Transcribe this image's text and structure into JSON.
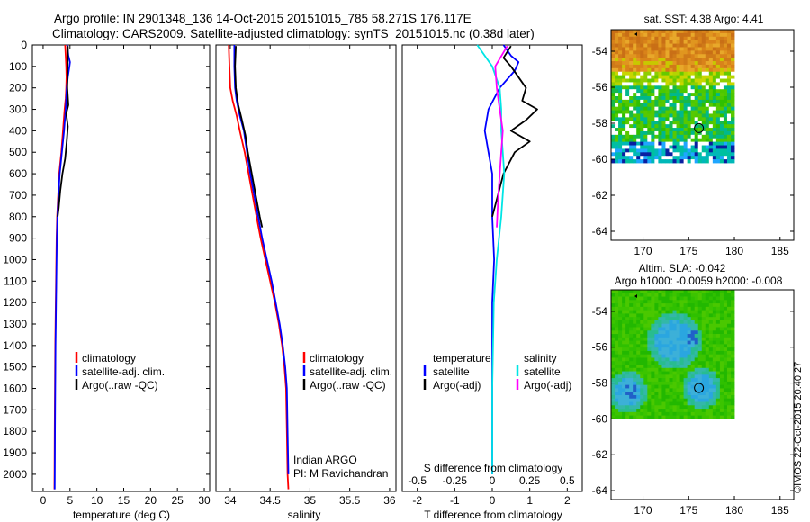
{
  "header": {
    "line1": "Argo profile: IN 2901348_136 14-Oct-2015 20151015_785 58.271S 176.117E",
    "line2": "Climatology: CARS2009. Satellite-adjusted climatology: synTS_20151015.nc (0.38d later)"
  },
  "colors": {
    "climatology": "#ff0000",
    "satellite": "#0000ff",
    "argo": "#000000",
    "sal_satellite": "#00e5e5",
    "sal_argo": "#ff00ff"
  },
  "credit": "©IMOS 22-Oct-2015 20:40:27",
  "chart_data": [
    {
      "type": "line",
      "id": "temperature",
      "xlabel": "temperature (deg C)",
      "xticks": [
        "0",
        "5",
        "10",
        "15",
        "20",
        "25",
        "30"
      ],
      "xlim": [
        -2,
        31
      ],
      "ylim": [
        2080,
        0
      ],
      "yticks": [
        "0",
        "100",
        "200",
        "300",
        "400",
        "500",
        "600",
        "700",
        "800",
        "900",
        "1000",
        "1100",
        "1200",
        "1300",
        "1400",
        "1500",
        "1600",
        "1700",
        "1800",
        "1900",
        "2000"
      ],
      "legend": [
        "climatology",
        "satellite-adj. clim.",
        "Argo(..raw -QC)"
      ],
      "series": [
        {
          "name": "climatology",
          "color": "#ff0000",
          "x": [
            4.1,
            4.2,
            4.3,
            4.35,
            4.3,
            4.2,
            4.0,
            3.7,
            3.4,
            3.0,
            2.8,
            2.6,
            2.5,
            2.45,
            2.4,
            2.35,
            2.3,
            2.25,
            2.2,
            2.15,
            2.12,
            2.1
          ],
          "y": [
            0,
            50,
            100,
            150,
            200,
            250,
            300,
            400,
            500,
            600,
            700,
            800,
            900,
            1000,
            1100,
            1200,
            1300,
            1400,
            1600,
            1800,
            2000,
            2070
          ]
        },
        {
          "name": "satellite-adj. clim.",
          "color": "#0000ff",
          "x": [
            4.5,
            4.7,
            5.0,
            4.9,
            4.6,
            4.4,
            4.2,
            3.9,
            3.5,
            3.1,
            2.85,
            2.65,
            2.55,
            2.5,
            2.45,
            2.4,
            2.35,
            2.3,
            2.25,
            2.2,
            2.17,
            2.15
          ],
          "y": [
            0,
            50,
            80,
            100,
            150,
            200,
            300,
            400,
            500,
            600,
            700,
            800,
            900,
            1000,
            1100,
            1200,
            1300,
            1400,
            1600,
            1800,
            2000,
            2070
          ]
        },
        {
          "name": "Argo",
          "color": "#000000",
          "x": [
            4.6,
            4.6,
            4.55,
            4.5,
            4.7,
            4.3,
            4.6,
            4.4,
            4.1,
            3.6,
            3.2,
            2.9,
            2.7
          ],
          "y": [
            5,
            50,
            100,
            200,
            280,
            320,
            380,
            450,
            530,
            600,
            680,
            760,
            800
          ]
        }
      ]
    },
    {
      "type": "line",
      "id": "salinity",
      "xlabel": "salinity",
      "xticks": [
        "34",
        "34.5",
        "35",
        "35.5",
        "36"
      ],
      "xlim": [
        33.82,
        36.08
      ],
      "ylim": [
        2080,
        0
      ],
      "legend": [
        "climatology",
        "satellite-adj. clim.",
        "Argo(..raw -QC)"
      ],
      "annotation": [
        "Indian ARGO",
        "PI: M Ravichandran"
      ],
      "series": [
        {
          "name": "climatology",
          "color": "#ff0000",
          "x": [
            33.98,
            33.99,
            34.0,
            34.03,
            34.08,
            34.12,
            34.18,
            34.23,
            34.28,
            34.33,
            34.38,
            34.44,
            34.5,
            34.56,
            34.61,
            34.65,
            34.68,
            34.7,
            34.71,
            34.72,
            34.73
          ],
          "y": [
            0,
            100,
            200,
            260,
            330,
            400,
            500,
            600,
            700,
            800,
            900,
            1000,
            1100,
            1200,
            1300,
            1400,
            1500,
            1600,
            1800,
            2000,
            2070
          ]
        },
        {
          "name": "satellite-adj. clim.",
          "color": "#0000ff",
          "x": [
            34.05,
            34.05,
            34.06,
            34.08,
            34.12,
            34.17,
            34.21,
            34.25,
            34.3,
            34.35,
            34.4,
            34.46,
            34.52,
            34.57,
            34.62,
            34.66,
            34.69,
            34.71,
            34.72,
            34.73
          ],
          "y": [
            0,
            100,
            200,
            260,
            330,
            400,
            500,
            600,
            700,
            800,
            900,
            1000,
            1100,
            1200,
            1300,
            1400,
            1500,
            1600,
            1800,
            2000
          ]
        },
        {
          "name": "Argo",
          "color": "#000000",
          "x": [
            34.07,
            34.06,
            34.07,
            34.1,
            34.14,
            34.19,
            34.22,
            34.27,
            34.32,
            34.37,
            34.4
          ],
          "y": [
            5,
            100,
            200,
            280,
            340,
            420,
            500,
            600,
            700,
            800,
            850
          ]
        }
      ]
    },
    {
      "type": "line",
      "id": "difference",
      "xlabel": "T difference from climatology",
      "xlabel_top": "S difference from climatology",
      "xticks": [
        "-2",
        "-1",
        "0",
        "1",
        "2"
      ],
      "xticks_top": [
        "-0.5",
        "-0.25",
        "0",
        "0.25",
        "0.5"
      ],
      "xlim": [
        -2.4,
        2.4
      ],
      "ylim": [
        2080,
        0
      ],
      "legend_temperature": [
        "temperature",
        "satellite",
        "Argo(-adj)"
      ],
      "legend_salinity": [
        "salinity",
        "satellite",
        "Argo(-adj)"
      ],
      "series": [
        {
          "name": "T satellite",
          "color": "#0000ff",
          "x": [
            0.3,
            0.5,
            0.7,
            0.6,
            0.2,
            -0.1,
            -0.2,
            -0.1,
            0.0,
            0.0,
            0.05,
            0.0,
            0.0,
            0.0
          ],
          "y": [
            0,
            50,
            80,
            120,
            200,
            300,
            400,
            500,
            600,
            800,
            1000,
            1200,
            1600,
            2000
          ]
        },
        {
          "name": "T Argo",
          "color": "#000000",
          "x": [
            0.5,
            0.3,
            0.5,
            0.9,
            0.8,
            1.2,
            0.9,
            0.5,
            1.0,
            0.6,
            0.3,
            0.0
          ],
          "y": [
            5,
            60,
            100,
            200,
            260,
            300,
            350,
            400,
            450,
            500,
            600,
            800
          ]
        },
        {
          "name": "S satellite",
          "color": "#00e5e5",
          "x": [
            -0.1,
            0.0,
            0.05,
            0.06,
            0.06,
            0.07,
            0.08,
            0.06,
            0.03,
            0.01,
            0.0,
            0.0
          ],
          "y": [
            0,
            100,
            200,
            300,
            400,
            500,
            600,
            800,
            1000,
            1200,
            1600,
            2000
          ]
        },
        {
          "name": "S Argo",
          "color": "#ff00ff",
          "x": [
            0.1,
            0.02,
            0.03,
            0.05,
            0.07,
            0.06,
            0.04,
            0.03
          ],
          "y": [
            5,
            100,
            200,
            300,
            400,
            500,
            700,
            850
          ]
        }
      ]
    },
    {
      "type": "heatmap",
      "id": "sst_map",
      "title": "sat. SST: 4.38 Argo: 4.41",
      "xticks": [
        "170",
        "175",
        "180",
        "185"
      ],
      "yticks": [
        "-54",
        "-56",
        "-58",
        "-60",
        "-62",
        "-64"
      ],
      "xlim": [
        166.5,
        186.5
      ],
      "ylim": [
        -64.5,
        -52.8
      ],
      "data_extent": {
        "lon": [
          166.5,
          180
        ],
        "lat": [
          -60.2,
          -52.8
        ]
      },
      "argo_position": {
        "lon": 176.117,
        "lat": -58.271
      }
    },
    {
      "type": "heatmap",
      "id": "sla_map",
      "title": "Altim. SLA: -0.042",
      "subtitle": "Argo h1000: -0.0059 h2000: -0.008",
      "xticks": [
        "170",
        "175",
        "180",
        "185"
      ],
      "yticks": [
        "-54",
        "-56",
        "-58",
        "-60",
        "-62",
        "-64"
      ],
      "xlim": [
        166.5,
        186.5
      ],
      "ylim": [
        -64.5,
        -52.8
      ],
      "data_extent": {
        "lon": [
          166.5,
          180
        ],
        "lat": [
          -60,
          -52.8
        ]
      },
      "argo_position": {
        "lon": 176.117,
        "lat": -58.271
      }
    }
  ]
}
